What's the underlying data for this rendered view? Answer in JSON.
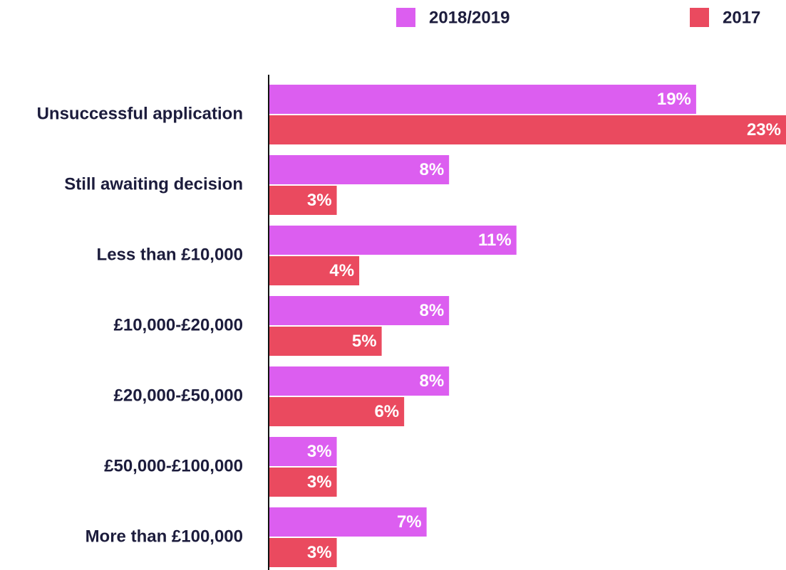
{
  "chart_data": {
    "type": "hbar",
    "categories": [
      "Unsuccessful application",
      "Still awaiting decision",
      "Less than £10,000",
      "£10,000-£20,000",
      "£20,000-£50,000",
      "£50,000-£100,000",
      "More than £100,000"
    ],
    "series": [
      {
        "name": "2018/2019",
        "color": "#dc5ef0",
        "values": [
          19,
          8,
          11,
          8,
          8,
          3,
          7
        ],
        "value_labels": [
          "19%",
          "8%",
          "11%",
          "8%",
          "8%",
          "3%",
          "7%"
        ]
      },
      {
        "name": "2017",
        "color": "#ea4a5f",
        "values": [
          23,
          3,
          4,
          5,
          6,
          3,
          3
        ],
        "value_labels": [
          "23%",
          "3%",
          "4%",
          "5%",
          "6%",
          "3%",
          "3%"
        ]
      }
    ],
    "xlim": [
      0,
      23
    ],
    "legend": "top-right"
  }
}
